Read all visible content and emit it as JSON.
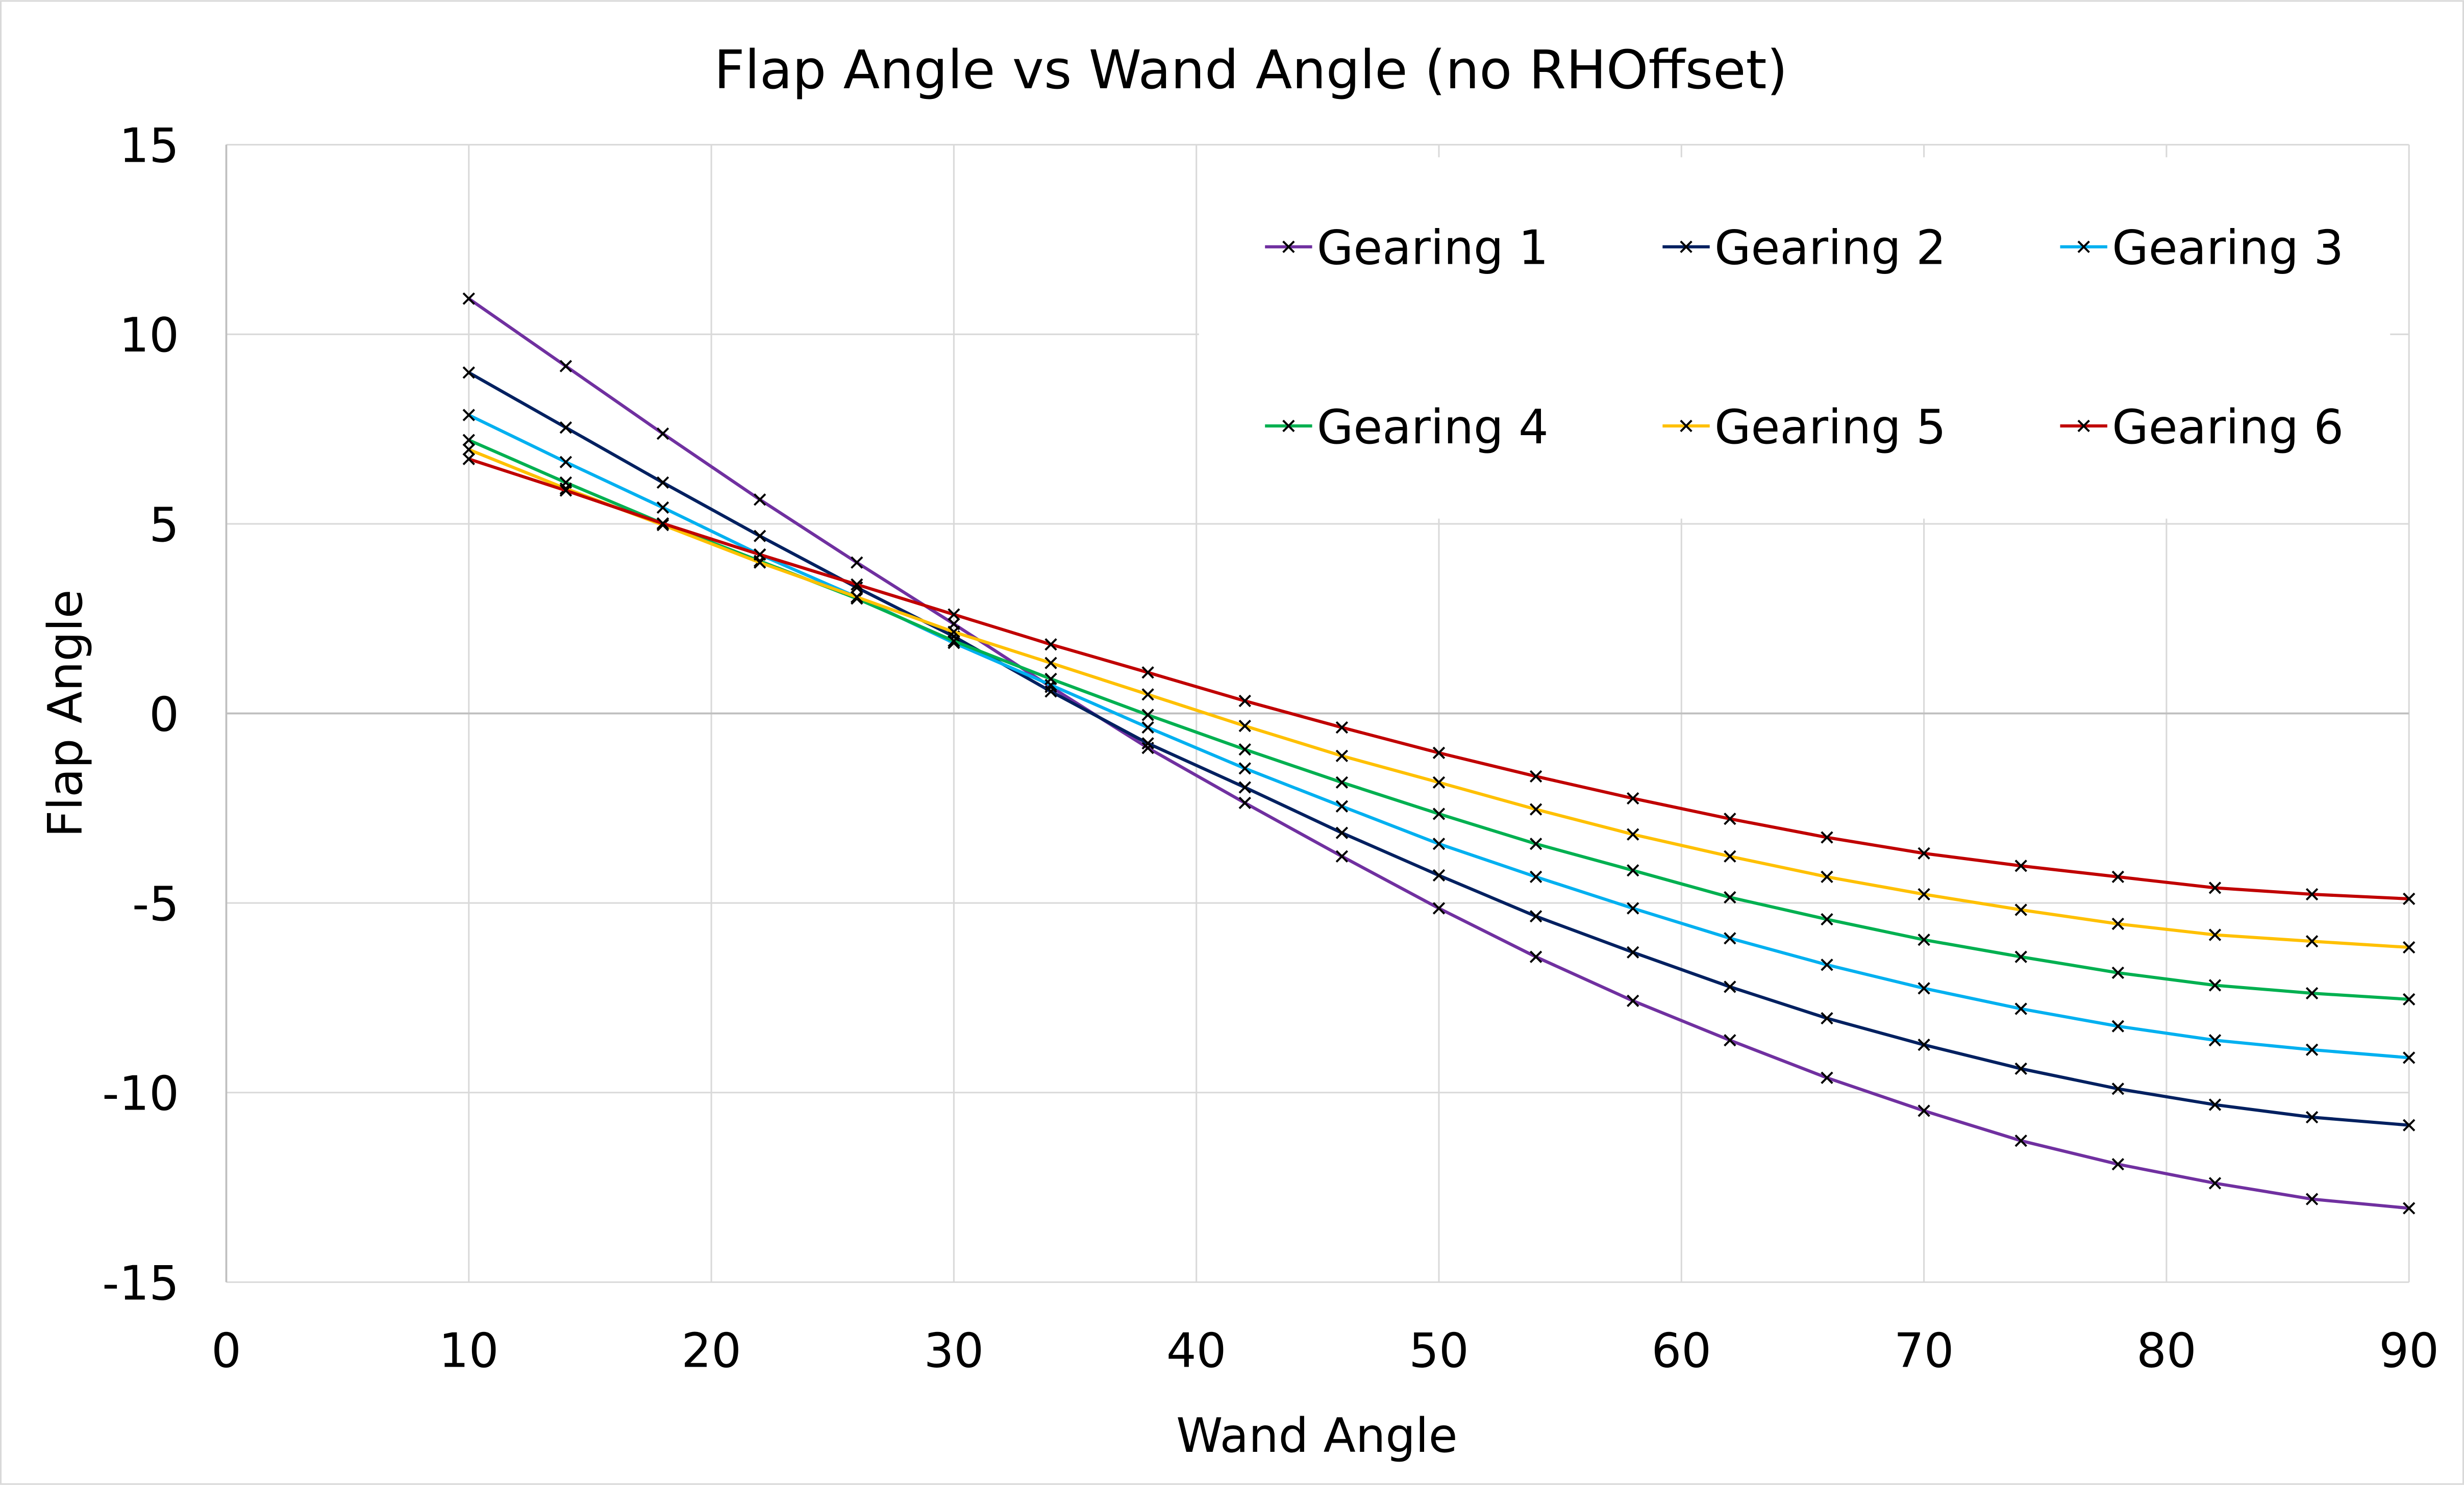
{
  "chart_data": {
    "type": "line",
    "title": "Flap Angle vs Wand Angle (no RHOffset)",
    "xlabel": "Wand Angle",
    "ylabel": "Flap Angle",
    "xlim": [
      0,
      90
    ],
    "ylim": [
      -15,
      15
    ],
    "xticks": [
      0,
      10,
      20,
      30,
      40,
      50,
      60,
      70,
      80,
      90
    ],
    "yticks": [
      -15,
      -10,
      -5,
      0,
      5,
      10,
      15
    ],
    "grid": true,
    "legend": "top-right",
    "marker": "x",
    "x": [
      10,
      14,
      18,
      22,
      26,
      30,
      34,
      38,
      42,
      46,
      50,
      54,
      58,
      62,
      66,
      70,
      74,
      78,
      82,
      86,
      90
    ],
    "series": [
      {
        "name": "Gearing 1",
        "color": "#7030A0",
        "values": [
          10.94,
          9.16,
          7.38,
          5.64,
          3.98,
          2.36,
          0.7,
          -0.91,
          -2.36,
          -3.77,
          -5.14,
          -6.42,
          -7.58,
          -8.62,
          -9.61,
          -10.48,
          -11.27,
          -11.89,
          -12.39,
          -12.81,
          -13.05
        ]
      },
      {
        "name": "Gearing 2",
        "color": "#002060",
        "values": [
          8.99,
          7.54,
          6.09,
          4.68,
          3.32,
          2.03,
          0.58,
          -0.79,
          -1.95,
          -3.15,
          -4.27,
          -5.35,
          -6.3,
          -7.21,
          -8.04,
          -8.74,
          -9.37,
          -9.9,
          -10.32,
          -10.65,
          -10.86
        ]
      },
      {
        "name": "Gearing 3",
        "color": "#00B0F0",
        "values": [
          7.87,
          6.63,
          5.43,
          4.19,
          3.07,
          1.86,
          0.75,
          -0.37,
          -1.45,
          -2.45,
          -3.44,
          -4.31,
          -5.14,
          -5.93,
          -6.63,
          -7.25,
          -7.79,
          -8.25,
          -8.62,
          -8.87,
          -9.08
        ]
      },
      {
        "name": "Gearing 4",
        "color": "#00B050",
        "values": [
          7.21,
          6.09,
          5.01,
          4.02,
          3.03,
          1.91,
          0.91,
          -0.04,
          -0.95,
          -1.82,
          -2.65,
          -3.44,
          -4.14,
          -4.85,
          -5.43,
          -5.97,
          -6.42,
          -6.84,
          -7.17,
          -7.38,
          -7.54
        ]
      },
      {
        "name": "Gearing 5",
        "color": "#FFC000",
        "values": [
          6.96,
          5.93,
          4.97,
          3.98,
          3.07,
          2.15,
          1.33,
          0.5,
          -0.33,
          -1.12,
          -1.82,
          -2.53,
          -3.19,
          -3.77,
          -4.31,
          -4.77,
          -5.18,
          -5.55,
          -5.84,
          -6.01,
          -6.17
        ]
      },
      {
        "name": "Gearing 6",
        "color": "#C00000",
        "values": [
          6.71,
          5.88,
          5.01,
          4.19,
          3.4,
          2.61,
          1.82,
          1.08,
          0.33,
          -0.37,
          -1.04,
          -1.66,
          -2.24,
          -2.78,
          -3.27,
          -3.69,
          -4.02,
          -4.31,
          -4.6,
          -4.77,
          -4.89
        ]
      }
    ]
  }
}
